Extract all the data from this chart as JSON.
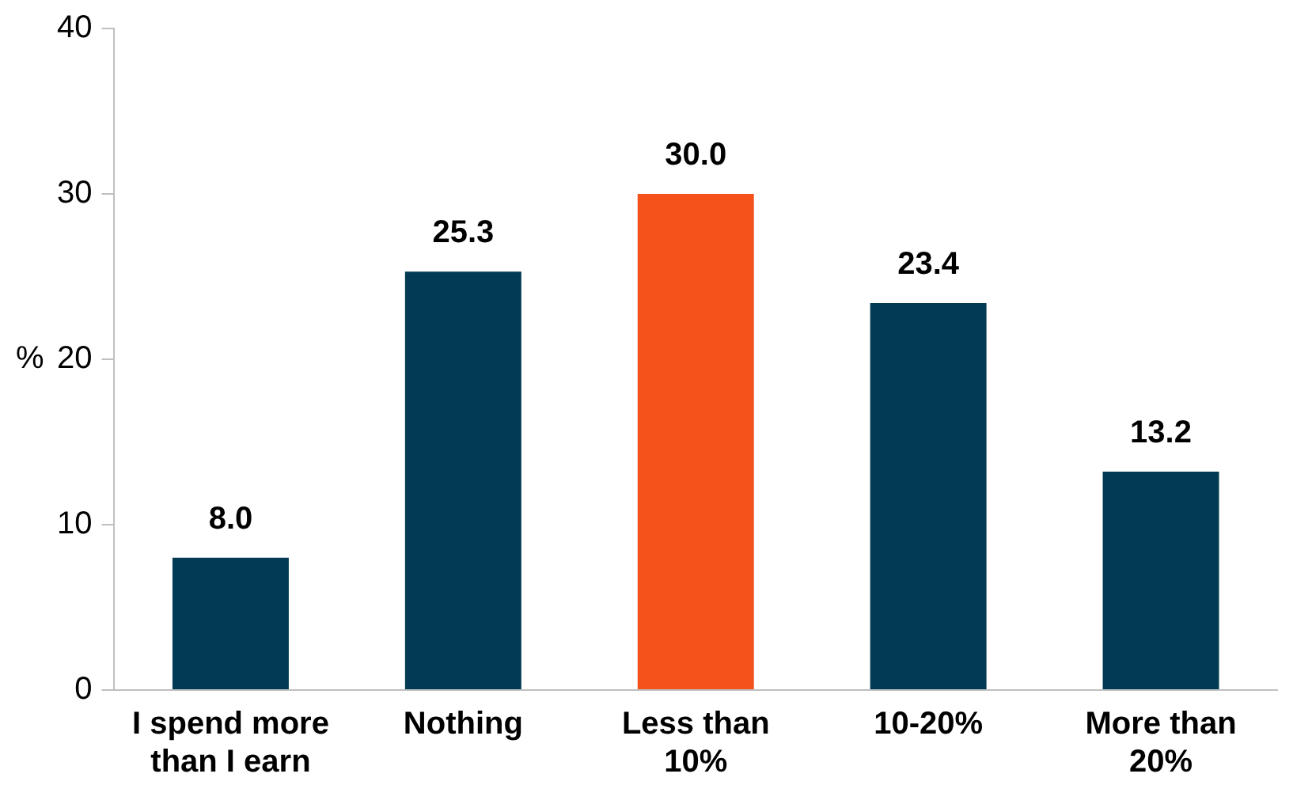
{
  "chart_data": {
    "type": "bar",
    "ylabel": "%",
    "categories": [
      "I spend more than I earn",
      "Nothing",
      "Less than 10%",
      "10-20%",
      "More than 20%"
    ],
    "values": [
      8.0,
      25.3,
      30.0,
      23.4,
      13.2
    ],
    "colors": [
      "#023a54",
      "#023a54",
      "#f4511b",
      "#023a54",
      "#023a54"
    ],
    "value_labels": [
      "8.0",
      "25.3",
      "30.0",
      "23.4",
      "13.2"
    ],
    "ylim": [
      0,
      40
    ],
    "yticks": [
      0,
      10,
      20,
      30,
      40
    ],
    "grid": false,
    "legend": false
  }
}
